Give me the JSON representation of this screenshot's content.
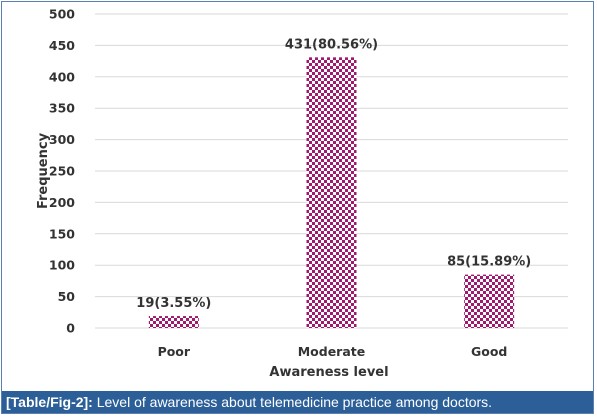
{
  "chart_data": {
    "type": "bar",
    "categories": [
      "Poor",
      "Moderate",
      "Good"
    ],
    "values": [
      19,
      431,
      85
    ],
    "data_labels": [
      "19(3.55%)",
      "431(80.56%)",
      "85(15.89%)"
    ],
    "xlabel": "Awareness level",
    "ylabel": "Frequency",
    "ylim": [
      0,
      500
    ],
    "yticks": [
      0,
      50,
      100,
      150,
      200,
      250,
      300,
      350,
      400,
      450,
      500
    ],
    "grid": true,
    "bar_fill": "checkered",
    "bar_color": "#a0196e"
  },
  "caption": {
    "tag": "[Table/Fig-2]:",
    "text": " Level of awareness about telemedicine practice among doctors."
  }
}
